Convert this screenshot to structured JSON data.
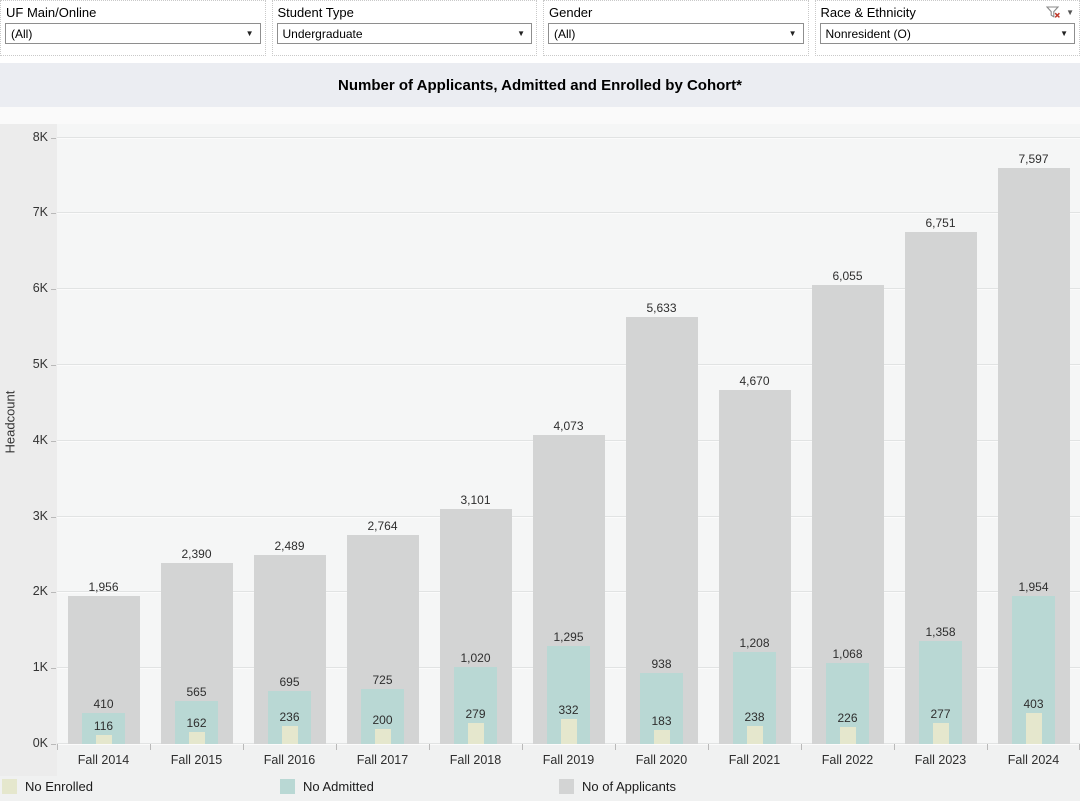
{
  "filters": {
    "items": [
      {
        "label": "UF Main/Online",
        "value": "(All)"
      },
      {
        "label": "Student Type",
        "value": "Undergraduate"
      },
      {
        "label": "Gender",
        "value": "(All)"
      },
      {
        "label": "Race & Ethnicity",
        "value": "Nonresident (O)",
        "filter_badge": "excluded-values-funnel-x"
      }
    ]
  },
  "title": "Number of Applicants, Admitted and Enrolled by Cohort*",
  "chart_data": {
    "type": "bar",
    "subtype": "overlapped-bars",
    "title": "Number of Applicants, Admitted and Enrolled by Cohort*",
    "xlabel": "",
    "ylabel": "Headcount",
    "ylim": [
      0,
      8000
    ],
    "ytick_values": [
      0,
      1000,
      2000,
      3000,
      4000,
      5000,
      6000,
      7000,
      8000
    ],
    "ytick_labels": [
      "0K",
      "1K",
      "2K",
      "3K",
      "4K",
      "5K",
      "6K",
      "7K",
      "8K"
    ],
    "grid": true,
    "legend_position": "bottom",
    "categories": [
      "Fall 2014",
      "Fall 2015",
      "Fall 2016",
      "Fall 2017",
      "Fall 2018",
      "Fall 2019",
      "Fall 2020",
      "Fall 2021",
      "Fall 2022",
      "Fall 2023",
      "Fall 2024"
    ],
    "series": [
      {
        "name": "No Enrolled",
        "color": "#e5e7cd",
        "values": [
          116,
          162,
          236,
          200,
          279,
          332,
          183,
          238,
          226,
          277,
          403
        ]
      },
      {
        "name": "No Admitted",
        "color": "#b9d8d4",
        "values": [
          410,
          565,
          695,
          725,
          1020,
          1295,
          938,
          1208,
          1068,
          1358,
          1954
        ]
      },
      {
        "name": "No of Applicants",
        "color": "#d3d4d4",
        "values": [
          1956,
          2390,
          2489,
          2764,
          3101,
          4073,
          5633,
          4670,
          6055,
          6751,
          7597
        ]
      }
    ],
    "value_labels_visible": true
  },
  "colors": {
    "title_bar_bg": "#ebedf2",
    "plot_bg": "#f5f6f6",
    "chart_bg": "#f0f1f1",
    "filter_badge_red": "#c0392b"
  }
}
